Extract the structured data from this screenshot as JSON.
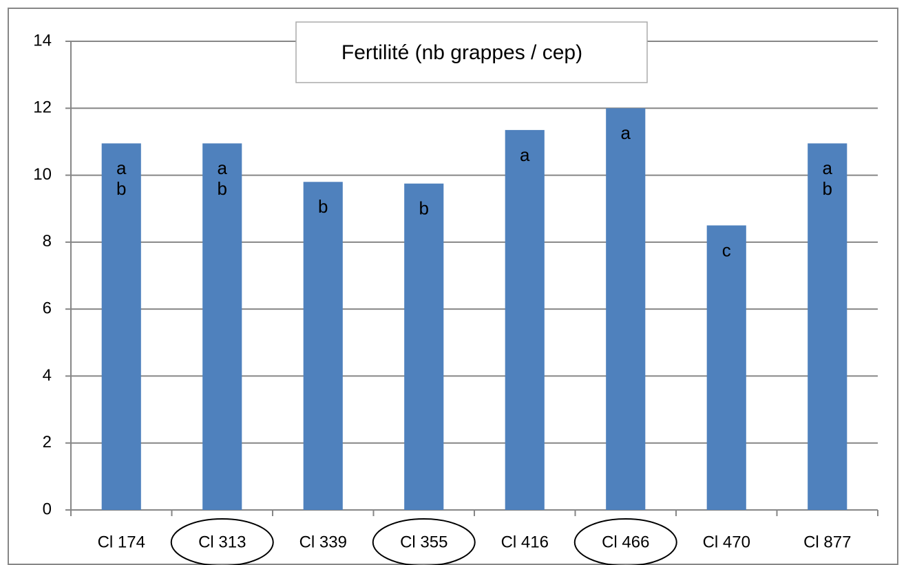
{
  "chart_data": {
    "type": "bar",
    "title": "Fertilité (nb grappes / cep)",
    "categories": [
      "Cl 174",
      "Cl 313",
      "Cl 339",
      "Cl 355",
      "Cl 416",
      "Cl 466",
      "Cl 470",
      "Cl 877"
    ],
    "values": [
      10.95,
      10.95,
      9.8,
      9.75,
      11.35,
      12.0,
      8.5,
      10.95
    ],
    "group_labels": [
      [
        "a",
        "b"
      ],
      [
        "a",
        "b"
      ],
      [
        "b"
      ],
      [
        "b"
      ],
      [
        "a"
      ],
      [
        "a"
      ],
      [
        "c"
      ],
      [
        "a",
        "b"
      ]
    ],
    "color": "#4f81bd",
    "ylim": [
      0,
      14
    ],
    "yticks": [
      0,
      2,
      4,
      6,
      8,
      10,
      12,
      14
    ],
    "grid": true
  }
}
